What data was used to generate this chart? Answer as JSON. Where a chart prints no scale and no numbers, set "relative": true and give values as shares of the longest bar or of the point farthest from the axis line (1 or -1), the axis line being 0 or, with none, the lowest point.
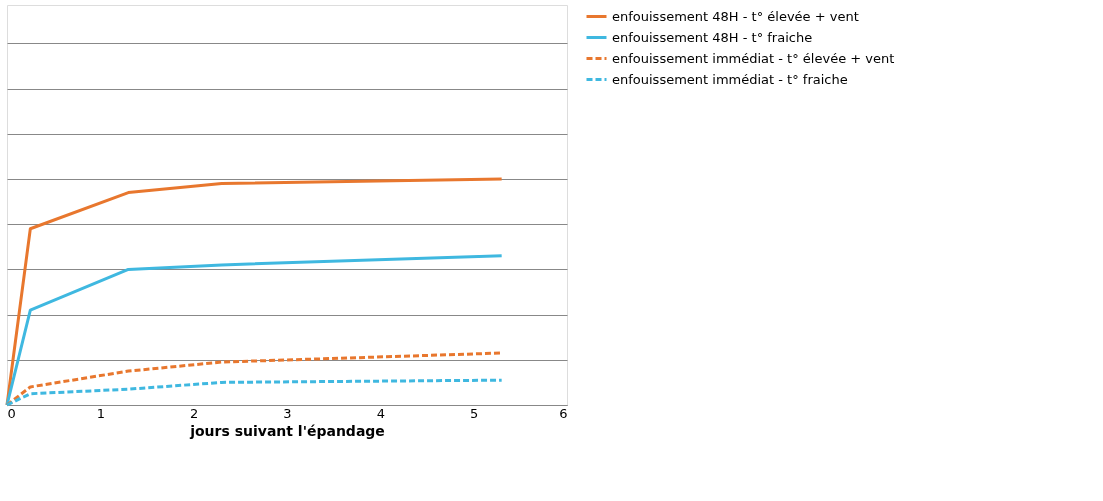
{
  "chart_data": {
    "type": "line",
    "xlabel": "jours suivant l'épandage",
    "xlim": [
      0,
      6
    ],
    "xticks": [
      0,
      1,
      2,
      3,
      4,
      5,
      6
    ],
    "relative": true,
    "grid": "y",
    "legend": "right",
    "x": [
      0,
      0.25,
      1.3,
      2.3,
      5.3
    ],
    "series": [
      {
        "name": "enfouissement 48H - t° élevée + vent",
        "color": "#e8772e",
        "line_style": "solid",
        "values": [
          0,
          0.78,
          0.94,
          0.98,
          1
        ]
      },
      {
        "name": "enfouissement 48H - t° fraiche",
        "color": "#3fb8e0",
        "line_style": "solid",
        "values": [
          0,
          0.42,
          0.6,
          0.62,
          0.66
        ]
      },
      {
        "name": "enfouissement immédiat - t° élevée + vent",
        "color": "#e8772e",
        "line_style": "dashed",
        "values": [
          0,
          0.08,
          0.15,
          0.19,
          0.23
        ]
      },
      {
        "name": "enfouissement immédiat - t° fraiche",
        "color": "#3fb8e0",
        "line_style": "dashed",
        "values": [
          0,
          0.05,
          0.07,
          0.1,
          0.11
        ]
      }
    ]
  }
}
